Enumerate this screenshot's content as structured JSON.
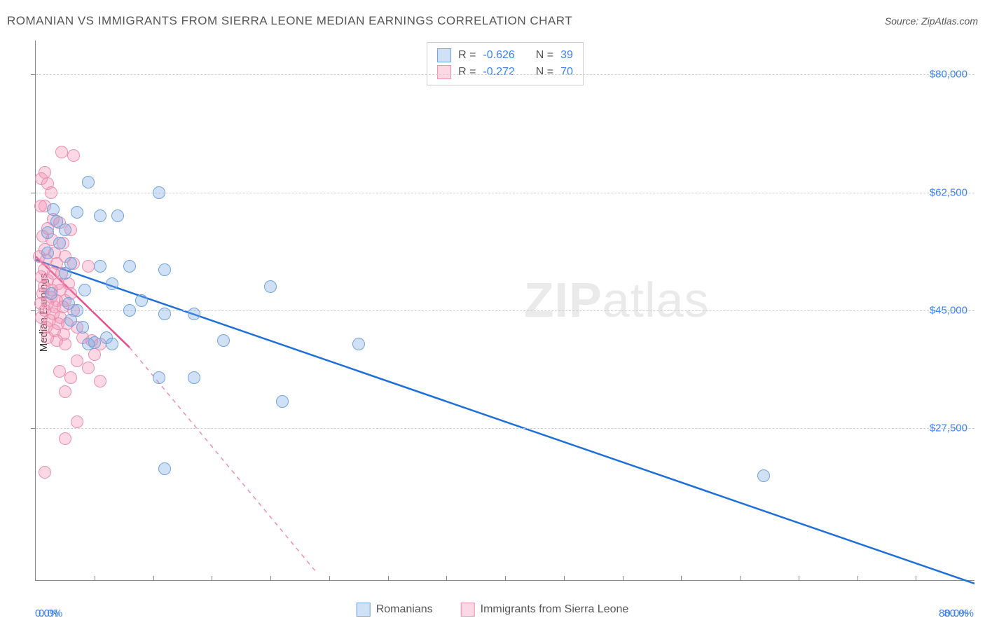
{
  "title": "ROMANIAN VS IMMIGRANTS FROM SIERRA LEONE MEDIAN EARNINGS CORRELATION CHART",
  "source": "Source: ZipAtlas.com",
  "ylabel": "Median Earnings",
  "watermark_bold": "ZIP",
  "watermark_rest": "atlas",
  "chart": {
    "type": "scatter",
    "xlim": [
      0,
      80
    ],
    "ylim": [
      5000,
      85000
    ],
    "background_color": "#ffffff",
    "grid_color": "#d0d0d0",
    "axis_color": "#888888",
    "label_color": "#3b82f6",
    "x_ticks_minor": [
      5,
      10,
      15,
      20,
      25,
      30,
      35,
      40,
      45,
      50,
      55,
      60,
      65,
      70,
      75
    ],
    "x_ticks_label": [
      {
        "v": 0,
        "label": "0.0%"
      },
      {
        "v": 80,
        "label": "80.0%"
      }
    ],
    "y_ticks": [
      {
        "v": 27500,
        "label": "$27,500"
      },
      {
        "v": 45000,
        "label": "$45,000"
      },
      {
        "v": 62500,
        "label": "$62,500"
      },
      {
        "v": 80000,
        "label": "$80,000"
      }
    ],
    "point_radius": 8,
    "series": {
      "romanians": {
        "label": "Romanians",
        "fill": "rgba(120,170,228,0.35)",
        "stroke": "#6fa3dc",
        "line_color": "#1e6fd9",
        "line_width": 2.5,
        "R": "-0.626",
        "N": "39",
        "trend": {
          "x1": 0,
          "y1": 52500,
          "x2": 80,
          "y2": 4500
        },
        "points": [
          [
            4.5,
            64000
          ],
          [
            10.5,
            62500
          ],
          [
            1.5,
            60000
          ],
          [
            3.5,
            59500
          ],
          [
            5.5,
            59000
          ],
          [
            7.0,
            59000
          ],
          [
            2.5,
            57000
          ],
          [
            2.0,
            55000
          ],
          [
            1.0,
            53500
          ],
          [
            3.0,
            52000
          ],
          [
            5.5,
            51500
          ],
          [
            8.0,
            51500
          ],
          [
            11.0,
            51000
          ],
          [
            6.5,
            49000
          ],
          [
            9.0,
            46500
          ],
          [
            20.0,
            48500
          ],
          [
            3.5,
            45000
          ],
          [
            8.0,
            45000
          ],
          [
            11.0,
            44500
          ],
          [
            13.5,
            44500
          ],
          [
            4.0,
            42500
          ],
          [
            6.0,
            41000
          ],
          [
            4.5,
            40000
          ],
          [
            6.5,
            40000
          ],
          [
            16.0,
            40500
          ],
          [
            27.5,
            40000
          ],
          [
            10.5,
            35000
          ],
          [
            13.5,
            35000
          ],
          [
            21.0,
            31500
          ],
          [
            11.0,
            21500
          ],
          [
            62.0,
            20500
          ],
          [
            2.5,
            50500
          ],
          [
            1.3,
            47500
          ],
          [
            3.0,
            43500
          ],
          [
            2.8,
            46000
          ],
          [
            4.2,
            48000
          ],
          [
            5.0,
            40200
          ],
          [
            1.0,
            56500
          ],
          [
            1.8,
            58200
          ]
        ]
      },
      "sierra": {
        "label": "Immigrants from Sierra Leone",
        "fill": "rgba(244,143,177,0.35)",
        "stroke": "#ec8fb0",
        "line_color": "#e94e8a",
        "line_width": 2.5,
        "line_dash": "6,6",
        "R": "-0.272",
        "N": "70",
        "trend_solid": {
          "x1": 0,
          "y1": 53000,
          "x2": 8,
          "y2": 39500
        },
        "trend_dashed": {
          "x1": 8,
          "y1": 39500,
          "x2": 24,
          "y2": 6000
        },
        "points": [
          [
            2.2,
            68500
          ],
          [
            3.2,
            68000
          ],
          [
            0.8,
            65500
          ],
          [
            0.5,
            64500
          ],
          [
            1.3,
            62500
          ],
          [
            1.0,
            63800
          ],
          [
            0.8,
            60500
          ],
          [
            0.4,
            60500
          ],
          [
            1.5,
            58500
          ],
          [
            2.0,
            58000
          ],
          [
            1.0,
            57200
          ],
          [
            3.0,
            57000
          ],
          [
            0.6,
            56000
          ],
          [
            1.4,
            55500
          ],
          [
            2.3,
            55000
          ],
          [
            0.8,
            54000
          ],
          [
            1.6,
            53500
          ],
          [
            2.5,
            53000
          ],
          [
            0.3,
            53000
          ],
          [
            0.9,
            52500
          ],
          [
            1.8,
            52000
          ],
          [
            3.2,
            52000
          ],
          [
            4.5,
            51500
          ],
          [
            0.7,
            51000
          ],
          [
            1.5,
            50500
          ],
          [
            2.2,
            50500
          ],
          [
            0.5,
            50000
          ],
          [
            1.0,
            49500
          ],
          [
            1.9,
            49000
          ],
          [
            2.8,
            49000
          ],
          [
            0.7,
            48500
          ],
          [
            1.4,
            48000
          ],
          [
            2.1,
            48000
          ],
          [
            3.0,
            47500
          ],
          [
            0.6,
            47500
          ],
          [
            1.3,
            47000
          ],
          [
            1.8,
            46500
          ],
          [
            2.5,
            46500
          ],
          [
            0.4,
            46000
          ],
          [
            1.0,
            46000
          ],
          [
            1.6,
            45500
          ],
          [
            2.3,
            45500
          ],
          [
            3.2,
            45000
          ],
          [
            0.8,
            45000
          ],
          [
            1.5,
            44500
          ],
          [
            2.1,
            44000
          ],
          [
            0.5,
            44000
          ],
          [
            1.2,
            43500
          ],
          [
            1.9,
            43000
          ],
          [
            2.7,
            43000
          ],
          [
            3.5,
            42500
          ],
          [
            0.9,
            42500
          ],
          [
            1.6,
            42000
          ],
          [
            2.4,
            41500
          ],
          [
            4.0,
            41000
          ],
          [
            1.0,
            41000
          ],
          [
            1.8,
            40500
          ],
          [
            4.8,
            40500
          ],
          [
            5.5,
            40000
          ],
          [
            2.5,
            40000
          ],
          [
            5.0,
            38500
          ],
          [
            3.5,
            37500
          ],
          [
            4.5,
            36500
          ],
          [
            2.0,
            36000
          ],
          [
            3.0,
            35000
          ],
          [
            5.5,
            34500
          ],
          [
            2.5,
            33000
          ],
          [
            3.5,
            28500
          ],
          [
            0.8,
            21000
          ],
          [
            2.5,
            26000
          ]
        ]
      }
    },
    "bottom_legend": [
      {
        "key": "romanians"
      },
      {
        "key": "sierra"
      }
    ]
  }
}
